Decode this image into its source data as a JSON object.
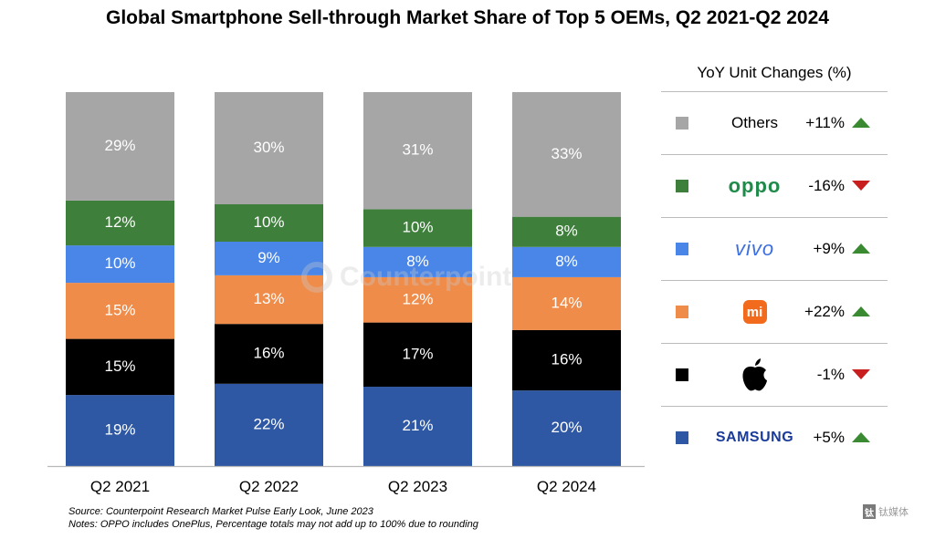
{
  "title": "Global Smartphone Sell-through Market Share of Top 5 OEMs, Q2 2021-Q2 2024",
  "colors": {
    "Samsung": "#2e58a3",
    "Apple": "#000000",
    "Xiaomi": "#f08c4a",
    "vivo": "#4a86e8",
    "OPPO": "#3f7f3c",
    "Others": "#a6a6a6",
    "up": "#3a8a32",
    "down": "#c81e1e"
  },
  "chart_data": {
    "type": "bar",
    "stacked": true,
    "categories": [
      "Q2 2021",
      "Q2 2022",
      "Q2 2023",
      "Q2 2024"
    ],
    "series": [
      {
        "name": "Samsung",
        "values": [
          19,
          22,
          21,
          20
        ]
      },
      {
        "name": "Apple",
        "values": [
          15,
          16,
          17,
          16
        ]
      },
      {
        "name": "Xiaomi",
        "values": [
          15,
          13,
          12,
          14
        ]
      },
      {
        "name": "vivo",
        "values": [
          10,
          9,
          8,
          8
        ]
      },
      {
        "name": "OPPO",
        "values": [
          12,
          10,
          10,
          8
        ]
      },
      {
        "name": "Others",
        "values": [
          29,
          30,
          31,
          33
        ]
      }
    ],
    "value_labels": [
      [
        "19%",
        "22%",
        "21%",
        "20%"
      ],
      [
        "15%",
        "16%",
        "17%",
        "16%"
      ],
      [
        "15%",
        "13%",
        "12%",
        "14%"
      ],
      [
        "10%",
        "9%",
        "8%",
        "8%"
      ],
      [
        "12%",
        "10%",
        "10%",
        "8%"
      ],
      [
        "29%",
        "30%",
        "31%",
        "33%"
      ]
    ],
    "legend_placement": "right"
  },
  "legend": {
    "title": "YoY Unit Changes (%)",
    "rows": [
      {
        "brand": "Others",
        "label": "Others",
        "change": "+11%",
        "direction": "up",
        "icon": "text"
      },
      {
        "brand": "OPPO",
        "label": "oppo",
        "change": "-16%",
        "direction": "down",
        "icon": "oppo-logo"
      },
      {
        "brand": "vivo",
        "label": "vivo",
        "change": "+9%",
        "direction": "up",
        "icon": "vivo-logo"
      },
      {
        "brand": "Xiaomi",
        "label": "mi",
        "change": "+22%",
        "direction": "up",
        "icon": "xiaomi-logo"
      },
      {
        "brand": "Apple",
        "label": "",
        "change": "-1%",
        "direction": "down",
        "icon": "apple-logo"
      },
      {
        "brand": "Samsung",
        "label": "SAMSUNG",
        "change": "+5%",
        "direction": "up",
        "icon": "samsung-logo"
      }
    ]
  },
  "footnotes": {
    "source": "Source: Counterpoint Research Market Pulse Early Look, June 2023",
    "notes": "Notes: OPPO includes OnePlus, Percentage totals may not add up to 100% due to rounding"
  },
  "watermark": "Counterpoint",
  "tmt_logo": {
    "box": "钛",
    "text": "钛媒体"
  }
}
